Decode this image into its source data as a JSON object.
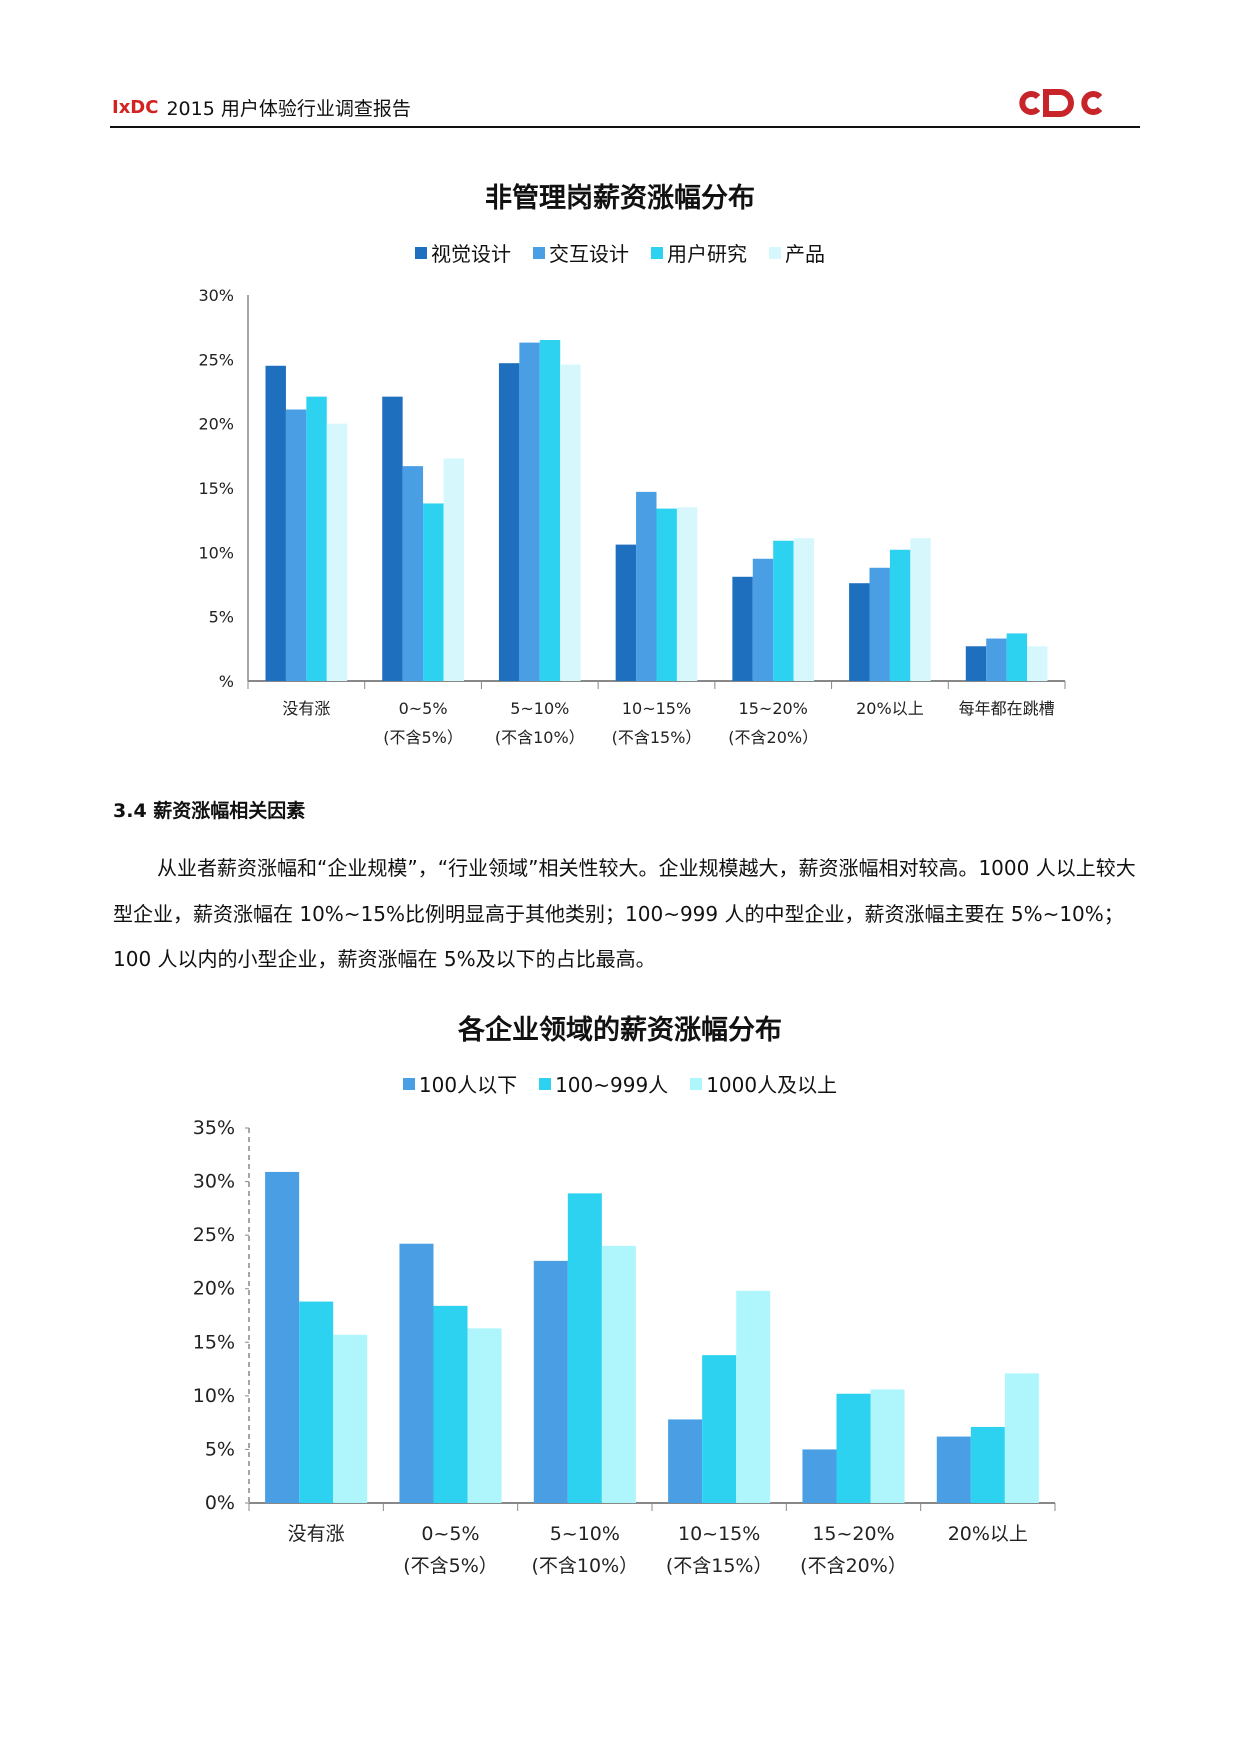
{
  "header": {
    "brand": "IxDC",
    "title": "2015 用户体验行业调查报告",
    "logo_text": "CDC"
  },
  "section": {
    "heading": "3.4 薪资涨幅相关因素",
    "paragraph": "从业者薪资涨幅和“企业规模”，“行业领域”相关性较大。企业规模越大，薪资涨幅相对较高。1000 人以上较大型企业，薪资涨幅在 10%~15%比例明显高于其他类别；100~999 人的中型企业，薪资涨幅主要在 5%~10%；100 人以内的小型企业，薪资涨幅在 5%及以下的占比最高。"
  },
  "chart_data": [
    {
      "type": "bar",
      "title": "非管理岗薪资涨幅分布",
      "categories": [
        [
          "没有涨",
          ""
        ],
        [
          "0~5%",
          "(不含5%）"
        ],
        [
          "5~10%",
          "(不含10%）"
        ],
        [
          "10~15%",
          "(不含15%）"
        ],
        [
          "15~20%",
          "(不含20%）"
        ],
        [
          "20%以上",
          ""
        ],
        [
          "每年都在跳槽",
          ""
        ]
      ],
      "y_ticks": [
        "%",
        "5%",
        "10%",
        "15%",
        "20%",
        "25%",
        "30%"
      ],
      "ylim": [
        0,
        30
      ],
      "legend_position": "top",
      "series": [
        {
          "name": "视觉设计",
          "color": "#1f6fbf",
          "values": [
            24.5,
            22.1,
            24.7,
            10.6,
            8.1,
            7.6,
            2.7
          ]
        },
        {
          "name": "交互设计",
          "color": "#4a9ee3",
          "values": [
            21.1,
            16.7,
            26.3,
            14.7,
            9.5,
            8.8,
            3.3
          ]
        },
        {
          "name": "用户研究",
          "color": "#2cd2f0",
          "values": [
            22.1,
            13.8,
            26.5,
            13.4,
            10.9,
            10.2,
            3.7
          ]
        },
        {
          "name": "产品",
          "color": "#d6f8fd",
          "values": [
            20.0,
            17.3,
            24.6,
            13.5,
            11.1,
            11.1,
            2.7
          ]
        }
      ]
    },
    {
      "type": "bar",
      "title": "各企业领域的薪资涨幅分布",
      "categories": [
        [
          "没有涨",
          ""
        ],
        [
          "0~5%",
          "(不含5%）"
        ],
        [
          "5~10%",
          "(不含10%）"
        ],
        [
          "10~15%",
          "(不含15%）"
        ],
        [
          "15~20%",
          "(不含20%）"
        ],
        [
          "20%以上",
          ""
        ]
      ],
      "y_ticks": [
        "0%",
        "5%",
        "10%",
        "15%",
        "20%",
        "25%",
        "30%",
        "35%"
      ],
      "ylim": [
        0,
        35
      ],
      "legend_position": "top",
      "series": [
        {
          "name": "100人以下",
          "color": "#4a9ee3",
          "values": [
            30.9,
            24.2,
            22.6,
            7.8,
            5.0,
            6.2
          ]
        },
        {
          "name": "100~999人",
          "color": "#2cd2f0",
          "values": [
            18.8,
            18.4,
            28.9,
            13.8,
            10.2,
            7.1
          ]
        },
        {
          "name": "1000人及以上",
          "color": "#aef6fc",
          "values": [
            15.7,
            16.3,
            24.0,
            19.8,
            10.6,
            12.1
          ]
        }
      ]
    }
  ]
}
